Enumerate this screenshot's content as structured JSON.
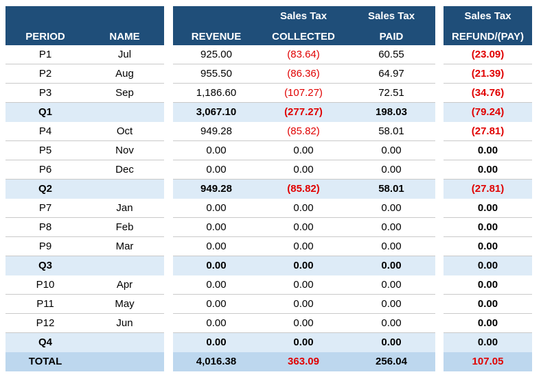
{
  "headers": {
    "period": "PERIOD",
    "name": "NAME",
    "revenue": "REVENUE",
    "collected_l1": "Sales Tax",
    "collected_l2": "COLLECTED",
    "paid_l1": "Sales Tax",
    "paid_l2": "PAID",
    "refund_l1": "Sales Tax",
    "refund_l2": "REFUND/(PAY)"
  },
  "colors": {
    "header_bg": "#1f4e79",
    "quarter_bg": "#ddebf7",
    "total_bg": "#bdd7ee",
    "negative": "#e00000"
  },
  "rows": [
    {
      "kind": "period",
      "period": "P1",
      "name": "Jul",
      "revenue": "925.00",
      "collected": "(83.64)",
      "paid": "60.55",
      "refund": "(23.09)"
    },
    {
      "kind": "period",
      "period": "P2",
      "name": "Aug",
      "revenue": "955.50",
      "collected": "(86.36)",
      "paid": "64.97",
      "refund": "(21.39)"
    },
    {
      "kind": "period",
      "period": "P3",
      "name": "Sep",
      "revenue": "1,186.60",
      "collected": "(107.27)",
      "paid": "72.51",
      "refund": "(34.76)"
    },
    {
      "kind": "quarter",
      "period": "Q1",
      "name": "",
      "revenue": "3,067.10",
      "collected": "(277.27)",
      "paid": "198.03",
      "refund": "(79.24)"
    },
    {
      "kind": "period",
      "period": "P4",
      "name": "Oct",
      "revenue": "949.28",
      "collected": "(85.82)",
      "paid": "58.01",
      "refund": "(27.81)"
    },
    {
      "kind": "period",
      "period": "P5",
      "name": "Nov",
      "revenue": "0.00",
      "collected": "0.00",
      "paid": "0.00",
      "refund": "0.00"
    },
    {
      "kind": "period",
      "period": "P6",
      "name": "Dec",
      "revenue": "0.00",
      "collected": "0.00",
      "paid": "0.00",
      "refund": "0.00"
    },
    {
      "kind": "quarter",
      "period": "Q2",
      "name": "",
      "revenue": "949.28",
      "collected": "(85.82)",
      "paid": "58.01",
      "refund": "(27.81)"
    },
    {
      "kind": "period",
      "period": "P7",
      "name": "Jan",
      "revenue": "0.00",
      "collected": "0.00",
      "paid": "0.00",
      "refund": "0.00"
    },
    {
      "kind": "period",
      "period": "P8",
      "name": "Feb",
      "revenue": "0.00",
      "collected": "0.00",
      "paid": "0.00",
      "refund": "0.00"
    },
    {
      "kind": "period",
      "period": "P9",
      "name": "Mar",
      "revenue": "0.00",
      "collected": "0.00",
      "paid": "0.00",
      "refund": "0.00"
    },
    {
      "kind": "quarter",
      "period": "Q3",
      "name": "",
      "revenue": "0.00",
      "collected": "0.00",
      "paid": "0.00",
      "refund": "0.00"
    },
    {
      "kind": "period",
      "period": "P10",
      "name": "Apr",
      "revenue": "0.00",
      "collected": "0.00",
      "paid": "0.00",
      "refund": "0.00"
    },
    {
      "kind": "period",
      "period": "P11",
      "name": "May",
      "revenue": "0.00",
      "collected": "0.00",
      "paid": "0.00",
      "refund": "0.00"
    },
    {
      "kind": "period",
      "period": "P12",
      "name": "Jun",
      "revenue": "0.00",
      "collected": "0.00",
      "paid": "0.00",
      "refund": "0.00"
    },
    {
      "kind": "quarter",
      "period": "Q4",
      "name": "",
      "revenue": "0.00",
      "collected": "0.00",
      "paid": "0.00",
      "refund": "0.00"
    },
    {
      "kind": "total",
      "period": "TOTAL",
      "name": "",
      "revenue": "4,016.38",
      "collected": "363.09",
      "paid": "256.04",
      "refund": "107.05"
    }
  ]
}
